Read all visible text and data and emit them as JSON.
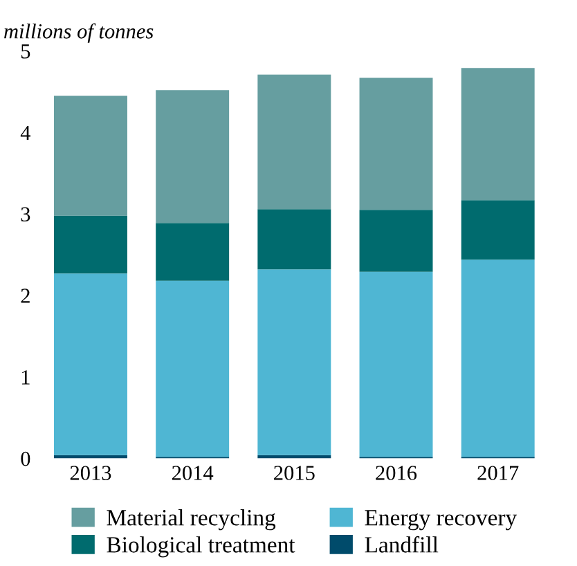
{
  "chart_data": {
    "type": "bar",
    "stacked": true,
    "ylabel": "millions of tonnes",
    "categories": [
      "2013",
      "2014",
      "2015",
      "2016",
      "2017"
    ],
    "series": [
      {
        "name": "Landfill",
        "color": "#004b6b",
        "values": [
          0.04,
          0.02,
          0.04,
          0.02,
          0.02
        ]
      },
      {
        "name": "Energy recovery",
        "color": "#4fb6d3",
        "values": [
          2.23,
          2.16,
          2.28,
          2.27,
          2.42
        ]
      },
      {
        "name": "Biological treatment",
        "color": "#006b6e",
        "values": [
          0.71,
          0.71,
          0.74,
          0.76,
          0.73
        ]
      },
      {
        "name": "Material recycling",
        "color": "#669ea0",
        "values": [
          1.47,
          1.63,
          1.65,
          1.62,
          1.62
        ]
      }
    ],
    "ylim": [
      0,
      5
    ],
    "yticks": [
      0,
      1,
      2,
      3,
      4,
      5
    ],
    "grid": false,
    "legend": "bottom"
  }
}
